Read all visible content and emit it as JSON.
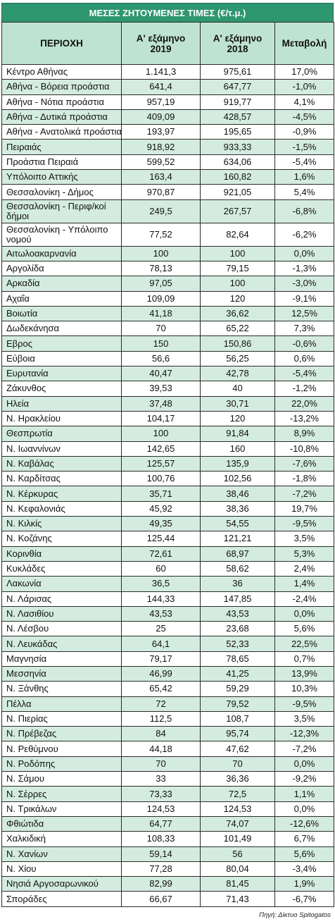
{
  "title": "ΜΕΣΕΣ ΖΗΤΟΥΜΕΝΕΣ ΤΙΜΕΣ (€/τ.μ.)",
  "headers": {
    "area": "ΠΕΡΙΟΧΗ",
    "h2019": "Α' εξάμηνο 2019",
    "h2018": "Α' εξάμηνο 2018",
    "change": "Μεταβολή"
  },
  "rows": [
    {
      "area": "Κέντρο Αθήνας",
      "v2019": "1.141,3",
      "v2018": "975,61",
      "change": "17,0%"
    },
    {
      "area": "Αθήνα - Βόρεια προάστια",
      "v2019": "641,4",
      "v2018": "647,77",
      "change": "-1,0%"
    },
    {
      "area": "Αθήνα - Νότια προάστια",
      "v2019": "957,19",
      "v2018": "919,77",
      "change": "4,1%"
    },
    {
      "area": "Αθήνα - Δυτικά προάστια",
      "v2019": "409,09",
      "v2018": "428,57",
      "change": "-4,5%"
    },
    {
      "area": "Αθήνα - Ανατολικά προάστια",
      "v2019": "193,97",
      "v2018": "195,65",
      "change": "-0,9%"
    },
    {
      "area": "Πειραιάς",
      "v2019": "918,92",
      "v2018": "933,33",
      "change": "-1,5%"
    },
    {
      "area": "Προάστια Πειραιά",
      "v2019": "599,52",
      "v2018": "634,06",
      "change": "-5,4%"
    },
    {
      "area": "Υπόλοιπο Αττικής",
      "v2019": "163,4",
      "v2018": "160,82",
      "change": "1,6%"
    },
    {
      "area": "Θεσσαλονίκη - Δήμος",
      "v2019": "970,87",
      "v2018": "921,05",
      "change": "5,4%"
    },
    {
      "area": "Θεσσαλονίκη - Περιφ/κοί δήμοι",
      "v2019": "249,5",
      "v2018": "267,57",
      "change": "-6,8%"
    },
    {
      "area": "Θεσσαλονίκη - Υπόλοιπο νομού",
      "v2019": "77,52",
      "v2018": "82,64",
      "change": "-6,2%"
    },
    {
      "area": "Αιτωλοακαρνανία",
      "v2019": "100",
      "v2018": "100",
      "change": "0,0%"
    },
    {
      "area": "Αργολίδα",
      "v2019": "78,13",
      "v2018": "79,15",
      "change": "-1,3%"
    },
    {
      "area": "Αρκαδία",
      "v2019": "97,05",
      "v2018": "100",
      "change": "-3,0%"
    },
    {
      "area": "Αχαΐα",
      "v2019": "109,09",
      "v2018": "120",
      "change": "-9,1%"
    },
    {
      "area": "Βοιωτία",
      "v2019": "41,18",
      "v2018": "36,62",
      "change": "12,5%"
    },
    {
      "area": "Δωδεκάνησα",
      "v2019": "70",
      "v2018": "65,22",
      "change": "7,3%"
    },
    {
      "area": "Εβρος",
      "v2019": "150",
      "v2018": "150,86",
      "change": "-0,6%"
    },
    {
      "area": "Εύβοια",
      "v2019": "56,6",
      "v2018": "56,25",
      "change": "0,6%"
    },
    {
      "area": "Ευρυτανία",
      "v2019": "40,47",
      "v2018": "42,78",
      "change": "-5,4%"
    },
    {
      "area": "Ζάκυνθος",
      "v2019": "39,53",
      "v2018": "40",
      "change": "-1,2%"
    },
    {
      "area": "Ηλεία",
      "v2019": "37,48",
      "v2018": "30,71",
      "change": "22,0%"
    },
    {
      "area": "Ν. Ηρακλείου",
      "v2019": "104,17",
      "v2018": "120",
      "change": "-13,2%"
    },
    {
      "area": "Θεσπρωτία",
      "v2019": "100",
      "v2018": "91,84",
      "change": "8,9%"
    },
    {
      "area": "Ν. Ιωαννίνων",
      "v2019": "142,65",
      "v2018": "160",
      "change": "-10,8%"
    },
    {
      "area": "Ν. Καβάλας",
      "v2019": "125,57",
      "v2018": "135,9",
      "change": "-7,6%"
    },
    {
      "area": "Ν. Καρδίτσας",
      "v2019": "100,76",
      "v2018": "102,56",
      "change": "-1,8%"
    },
    {
      "area": "Ν. Κέρκυρας",
      "v2019": "35,71",
      "v2018": "38,46",
      "change": "-7,2%"
    },
    {
      "area": "Ν. Κεφαλονιάς",
      "v2019": "45,92",
      "v2018": "38,36",
      "change": "19,7%"
    },
    {
      "area": "Ν. Κιλκίς",
      "v2019": "49,35",
      "v2018": "54,55",
      "change": "-9,5%"
    },
    {
      "area": "Ν. Κοζάνης",
      "v2019": "125,44",
      "v2018": "121,21",
      "change": "3,5%"
    },
    {
      "area": "Κορινθία",
      "v2019": "72,61",
      "v2018": "68,97",
      "change": "5,3%"
    },
    {
      "area": "Κυκλάδες",
      "v2019": "60",
      "v2018": "58,62",
      "change": "2,4%"
    },
    {
      "area": "Λακωνία",
      "v2019": "36,5",
      "v2018": "36",
      "change": "1,4%"
    },
    {
      "area": "Ν. Λάρισας",
      "v2019": "144,33",
      "v2018": "147,85",
      "change": "-2,4%"
    },
    {
      "area": "Ν. Λασιθίου",
      "v2019": "43,53",
      "v2018": "43,53",
      "change": "0,0%"
    },
    {
      "area": "Ν. Λέσβου",
      "v2019": "25",
      "v2018": "23,68",
      "change": "5,6%"
    },
    {
      "area": "Ν. Λευκάδας",
      "v2019": "64,1",
      "v2018": "52,33",
      "change": "22,5%"
    },
    {
      "area": "Μαγνησία",
      "v2019": "79,17",
      "v2018": "78,65",
      "change": "0,7%"
    },
    {
      "area": "Μεσσηνία",
      "v2019": "46,99",
      "v2018": "41,25",
      "change": "13,9%"
    },
    {
      "area": "Ν. Ξάνθης",
      "v2019": "65,42",
      "v2018": "59,29",
      "change": "10,3%"
    },
    {
      "area": "Πέλλα",
      "v2019": "72",
      "v2018": "79,52",
      "change": "-9,5%"
    },
    {
      "area": "Ν. Πιερίας",
      "v2019": "112,5",
      "v2018": "108,7",
      "change": "3,5%"
    },
    {
      "area": "Ν. Πρέβεζας",
      "v2019": "84",
      "v2018": "95,74",
      "change": "-12,3%"
    },
    {
      "area": "Ν. Ρεθύμνου",
      "v2019": "44,18",
      "v2018": "47,62",
      "change": "-7,2%"
    },
    {
      "area": "Ν. Ροδόπης",
      "v2019": "70",
      "v2018": "70",
      "change": "0,0%"
    },
    {
      "area": "Ν. Σάμου",
      "v2019": "33",
      "v2018": "36,36",
      "change": "-9,2%"
    },
    {
      "area": "Ν. Σέρρες",
      "v2019": "73,33",
      "v2018": "72,5",
      "change": "1,1%"
    },
    {
      "area": "Ν. Τρικάλων",
      "v2019": "124,53",
      "v2018": "124,53",
      "change": "0,0%"
    },
    {
      "area": "Φθιώτιδα",
      "v2019": "64,77",
      "v2018": "74,07",
      "change": "-12,6%"
    },
    {
      "area": "Χαλκιδική",
      "v2019": "108,33",
      "v2018": "101,49",
      "change": "6,7%"
    },
    {
      "area": "Ν. Χανίων",
      "v2019": "59,14",
      "v2018": "56",
      "change": "5,6%"
    },
    {
      "area": "Ν. Χίου",
      "v2019": "77,28",
      "v2018": "80,04",
      "change": "-3,4%"
    },
    {
      "area": "Νησιά Αργοσαρωνικού",
      "v2019": "82,99",
      "v2018": "81,45",
      "change": "1,9%"
    },
    {
      "area": "Σποράδες",
      "v2019": "66,67",
      "v2018": "71,43",
      "change": "-6,7%"
    }
  ],
  "source": "Πηγή: Δίκτυο Spitogatos"
}
